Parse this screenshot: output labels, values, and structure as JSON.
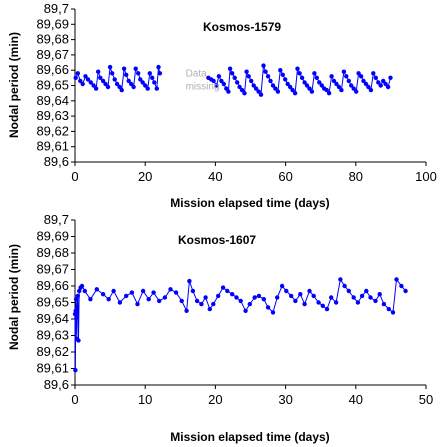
{
  "colors": {
    "series": "#0000ff",
    "axis": "#000000",
    "background": "#ffffff",
    "annotation": "#b0b0b0"
  },
  "chart_data": [
    {
      "type": "line",
      "title": "Kosmos-1579",
      "xlabel": "Mission elapsed time (days)",
      "ylabel": "Nodal period (min)",
      "xlim": [
        0,
        100
      ],
      "ylim": [
        89.6,
        89.7
      ],
      "xticks": [
        "0",
        "20",
        "40",
        "60",
        "80",
        "100"
      ],
      "xtick_values": [
        0,
        20,
        40,
        60,
        80,
        100
      ],
      "yticks": [
        "89,6",
        "89,61",
        "89,62",
        "89,63",
        "89,64",
        "89,65",
        "89,66",
        "89,67",
        "89,68",
        "89,69",
        "89,7"
      ],
      "ytick_values": [
        89.6,
        89.61,
        89.62,
        89.63,
        89.64,
        89.65,
        89.66,
        89.67,
        89.68,
        89.69,
        89.7
      ],
      "grid": false,
      "annotations": [
        {
          "lines": [
            "Data",
            "missing"
          ],
          "x": 31.5,
          "y": 89.656
        }
      ],
      "series": [
        {
          "segments": [
            [
              [
                0.2,
                89.655
              ],
              [
                0.8,
                89.658
              ],
              [
                1.5,
                89.653
              ],
              [
                2.2,
                89.651
              ],
              [
                3.0,
                89.656
              ],
              [
                3.7,
                89.654
              ],
              [
                4.5,
                89.652
              ],
              [
                5.3,
                89.65
              ],
              [
                6.0,
                89.648
              ],
              [
                6.6,
                89.659
              ],
              [
                7.2,
                89.655
              ],
              [
                8.0,
                89.653
              ],
              [
                8.7,
                89.651
              ],
              [
                9.4,
                89.649
              ],
              [
                10.0,
                89.662
              ],
              [
                10.6,
                89.658
              ],
              [
                11.3,
                89.654
              ],
              [
                12.0,
                89.651
              ],
              [
                12.7,
                89.649
              ],
              [
                13.3,
                89.647
              ],
              [
                14.0,
                89.661
              ],
              [
                14.6,
                89.657
              ],
              [
                15.3,
                89.653
              ],
              [
                16.0,
                89.651
              ],
              [
                16.7,
                89.649
              ],
              [
                17.3,
                89.661
              ],
              [
                18.0,
                89.658
              ],
              [
                18.6,
                89.654
              ],
              [
                19.3,
                89.652
              ],
              [
                20.0,
                89.65
              ],
              [
                20.7,
                89.648
              ],
              [
                21.3,
                89.658
              ],
              [
                22.0,
                89.655
              ],
              [
                22.6,
                89.652
              ],
              [
                23.3,
                89.648
              ],
              [
                23.8,
                89.662
              ],
              [
                24.2,
                89.658
              ]
            ],
            [
              [
                38.0,
                89.655
              ],
              [
                38.8,
                89.654
              ],
              [
                39.5,
                89.653
              ],
              [
                40.3,
                89.65
              ],
              [
                41.0,
                89.656
              ],
              [
                41.7,
                89.653
              ],
              [
                42.4,
                89.651
              ],
              [
                43.1,
                89.648
              ],
              [
                43.7,
                89.646
              ],
              [
                44.2,
                89.661
              ],
              [
                44.8,
                89.658
              ],
              [
                45.5,
                89.655
              ],
              [
                46.2,
                89.652
              ],
              [
                46.9,
                89.649
              ],
              [
                47.6,
                89.647
              ],
              [
                48.3,
                89.645
              ],
              [
                48.9,
                89.659
              ],
              [
                49.5,
                89.656
              ],
              [
                50.2,
                89.653
              ],
              [
                50.9,
                89.65
              ],
              [
                51.6,
                89.648
              ],
              [
                52.3,
                89.646
              ],
              [
                53.0,
                89.644
              ],
              [
                53.7,
                89.663
              ],
              [
                54.3,
                89.659
              ],
              [
                55.0,
                89.656
              ],
              [
                55.7,
                89.653
              ],
              [
                56.4,
                89.65
              ],
              [
                57.1,
                89.648
              ],
              [
                57.8,
                89.646
              ],
              [
                58.5,
                89.66
              ],
              [
                59.2,
                89.657
              ],
              [
                59.9,
                89.654
              ],
              [
                60.6,
                89.651
              ],
              [
                61.3,
                89.649
              ],
              [
                62.0,
                89.647
              ],
              [
                62.7,
                89.645
              ],
              [
                63.4,
                89.661
              ],
              [
                64.0,
                89.658
              ],
              [
                64.7,
                89.655
              ],
              [
                65.4,
                89.652
              ],
              [
                66.1,
                89.65
              ],
              [
                66.8,
                89.648
              ],
              [
                67.5,
                89.646
              ],
              [
                68.2,
                89.658
              ],
              [
                68.9,
                89.655
              ],
              [
                69.6,
                89.652
              ],
              [
                70.3,
                89.65
              ],
              [
                71.0,
                89.648
              ],
              [
                71.7,
                89.647
              ],
              [
                72.4,
                89.645
              ],
              [
                73.1,
                89.656
              ],
              [
                73.8,
                89.653
              ],
              [
                74.5,
                89.651
              ],
              [
                75.2,
                89.649
              ],
              [
                75.9,
                89.647
              ],
              [
                76.6,
                89.659
              ],
              [
                77.3,
                89.656
              ],
              [
                78.0,
                89.653
              ],
              [
                78.7,
                89.65
              ],
              [
                79.4,
                89.648
              ],
              [
                80.1,
                89.646
              ],
              [
                80.8,
                89.658
              ],
              [
                81.5,
                89.656
              ],
              [
                82.2,
                89.653
              ],
              [
                82.9,
                89.651
              ],
              [
                83.6,
                89.649
              ],
              [
                84.3,
                89.647
              ],
              [
                85.0,
                89.658
              ],
              [
                85.7,
                89.655
              ],
              [
                86.4,
                89.652
              ],
              [
                87.1,
                89.65
              ],
              [
                87.8,
                89.653
              ],
              [
                88.5,
                89.651
              ],
              [
                89.2,
                89.649
              ],
              [
                89.9,
                89.655
              ]
            ]
          ]
        }
      ]
    },
    {
      "type": "line",
      "title": "Kosmos-1607",
      "xlabel": "Mission elapsed time (days)",
      "ylabel": "Nodal period (min)",
      "xlim": [
        0,
        50
      ],
      "ylim": [
        89.6,
        89.7
      ],
      "xticks": [
        "0",
        "10",
        "20",
        "30",
        "40",
        "50"
      ],
      "xtick_values": [
        0,
        10,
        20,
        30,
        40,
        50
      ],
      "yticks": [
        "89,6",
        "89,61",
        "89,62",
        "89,63",
        "89,64",
        "89,65",
        "89,66",
        "89,67",
        "89,68",
        "89,69",
        "89,7"
      ],
      "ytick_values": [
        89.6,
        89.61,
        89.62,
        89.63,
        89.64,
        89.65,
        89.66,
        89.67,
        89.68,
        89.69,
        89.7
      ],
      "grid": false,
      "annotations": [],
      "series": [
        {
          "segments": [
            [
              [
                0.0,
                89.643
              ],
              [
                0.05,
                89.609
              ],
              [
                0.1,
                89.645
              ],
              [
                0.15,
                89.652
              ],
              [
                0.2,
                89.641
              ],
              [
                0.25,
                89.628
              ],
              [
                0.3,
                89.647
              ],
              [
                0.4,
                89.654
              ],
              [
                0.5,
                89.627
              ],
              [
                0.6,
                89.657
              ],
              [
                0.8,
                89.659
              ],
              [
                1.0,
                89.66
              ],
              [
                1.4,
                89.657
              ],
              [
                2.2,
                89.652
              ],
              [
                3.1,
                89.658
              ],
              [
                4.0,
                89.655
              ],
              [
                4.8,
                89.652
              ],
              [
                5.5,
                89.657
              ],
              [
                6.4,
                89.65
              ],
              [
                7.3,
                89.654
              ],
              [
                8.1,
                89.656
              ],
              [
                8.9,
                89.649
              ],
              [
                9.7,
                89.657
              ],
              [
                10.5,
                89.652
              ],
              [
                11.2,
                89.656
              ],
              [
                12.0,
                89.651
              ],
              [
                12.8,
                89.653
              ],
              [
                13.6,
                89.658
              ],
              [
                14.4,
                89.656
              ],
              [
                15.2,
                89.651
              ],
              [
                15.9,
                89.645
              ],
              [
                16.3,
                89.663
              ],
              [
                16.8,
                89.657
              ],
              [
                17.4,
                89.651
              ],
              [
                18.0,
                89.649
              ],
              [
                18.6,
                89.653
              ],
              [
                19.2,
                89.646
              ],
              [
                19.7,
                89.649
              ],
              [
                20.4,
                89.654
              ],
              [
                21.1,
                89.659
              ],
              [
                21.7,
                89.657
              ],
              [
                22.4,
                89.655
              ],
              [
                23.0,
                89.653
              ],
              [
                23.6,
                89.651
              ],
              [
                24.3,
                89.645
              ],
              [
                24.9,
                89.649
              ],
              [
                25.6,
                89.653
              ],
              [
                26.2,
                89.654
              ],
              [
                26.9,
                89.652
              ],
              [
                27.5,
                89.647
              ],
              [
                28.2,
                89.644
              ],
              [
                28.8,
                89.653
              ],
              [
                29.5,
                89.66
              ],
              [
                30.1,
                89.657
              ],
              [
                30.8,
                89.654
              ],
              [
                31.4,
                89.651
              ],
              [
                32.1,
                89.655
              ],
              [
                32.7,
                89.649
              ],
              [
                33.4,
                89.657
              ],
              [
                34.0,
                89.654
              ],
              [
                34.7,
                89.65
              ],
              [
                35.3,
                89.648
              ],
              [
                35.9,
                89.646
              ],
              [
                36.5,
                89.653
              ],
              [
                37.2,
                89.65
              ],
              [
                37.8,
                89.664
              ],
              [
                38.4,
                89.66
              ],
              [
                39.0,
                89.657
              ],
              [
                39.7,
                89.653
              ],
              [
                40.3,
                89.65
              ],
              [
                40.9,
                89.654
              ],
              [
                41.5,
                89.657
              ],
              [
                42.1,
                89.653
              ],
              [
                42.8,
                89.651
              ],
              [
                43.4,
                89.655
              ],
              [
                44.0,
                89.649
              ],
              [
                44.7,
                89.646
              ],
              [
                45.3,
                89.644
              ],
              [
                45.8,
                89.664
              ],
              [
                46.5,
                89.66
              ],
              [
                47.1,
                89.657
              ]
            ]
          ]
        }
      ]
    }
  ]
}
